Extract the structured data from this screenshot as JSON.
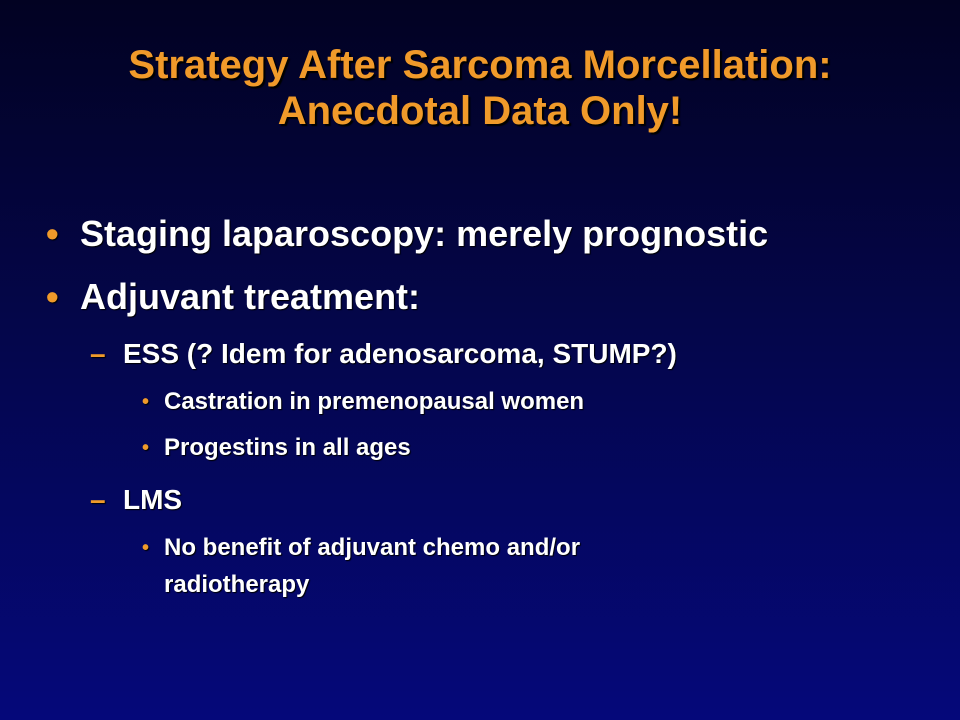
{
  "slide": {
    "title_line1": "Strategy After Sarcoma Morcellation:",
    "title_line2": "Anecdotal Data Only!",
    "bullet_marker": "•",
    "dash_marker": "–",
    "items": {
      "staging": "Staging laparoscopy: merely prognostic",
      "adjuvant": "Adjuvant treatment:",
      "ess": "ESS (? Idem for adenosarcoma, STUMP?)",
      "castration": "Castration in premenopausal women",
      "progestins": "Progestins in all ages",
      "lms": "LMS",
      "no_benefit_line1": "No benefit of adjuvant chemo and/or",
      "no_benefit_line2": "radiotherapy"
    }
  }
}
